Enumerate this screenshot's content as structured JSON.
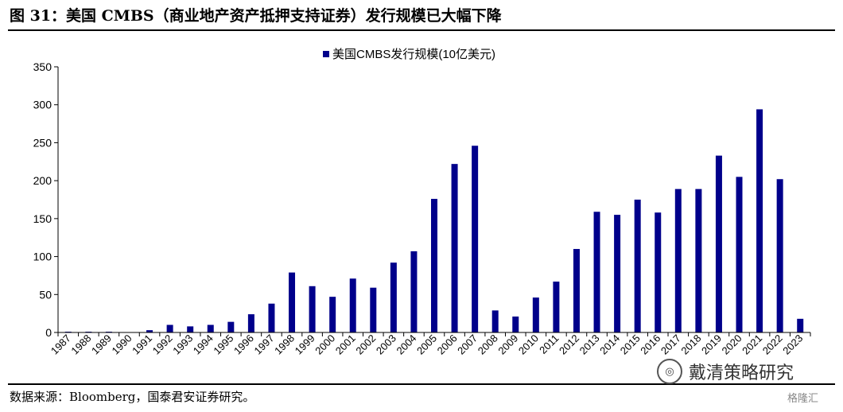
{
  "header": {
    "title": "图 31：美国 CMBS（商业地产资产抵押支持证券）发行规模已大幅下降"
  },
  "footer": {
    "source": "数据来源：Bloomberg，国泰君安证券研究。"
  },
  "watermark": {
    "icon": "wechat-icon",
    "text": "戴清策略研究",
    "logo_text": "格隆汇"
  },
  "colors": {
    "bar": "#00008B",
    "axis": "#000000"
  },
  "chart_data": {
    "type": "bar",
    "title": "",
    "xlabel": "",
    "ylabel": "",
    "ylim": [
      0,
      350
    ],
    "yticks": [
      0,
      50,
      100,
      150,
      200,
      250,
      300,
      350
    ],
    "grid": false,
    "legend_position": "top-center",
    "categories": [
      "1987",
      "1988",
      "1989",
      "1990",
      "1991",
      "1992",
      "1993",
      "1994",
      "1995",
      "1996",
      "1997",
      "1998",
      "1999",
      "2000",
      "2001",
      "2002",
      "2003",
      "2004",
      "2005",
      "2006",
      "2007",
      "2008",
      "2009",
      "2010",
      "2011",
      "2012",
      "2013",
      "2014",
      "2015",
      "2016",
      "2017",
      "2018",
      "2019",
      "2020",
      "2021",
      "2022",
      "2023"
    ],
    "series": [
      {
        "name": "美国CMBS发行规模(10亿美元)",
        "values": [
          1,
          1,
          1,
          0,
          3,
          10,
          8,
          10,
          14,
          24,
          38,
          79,
          61,
          47,
          71,
          59,
          92,
          107,
          176,
          222,
          246,
          29,
          21,
          46,
          67,
          110,
          159,
          155,
          175,
          158,
          189,
          189,
          233,
          205,
          294,
          202,
          18
        ]
      }
    ]
  }
}
